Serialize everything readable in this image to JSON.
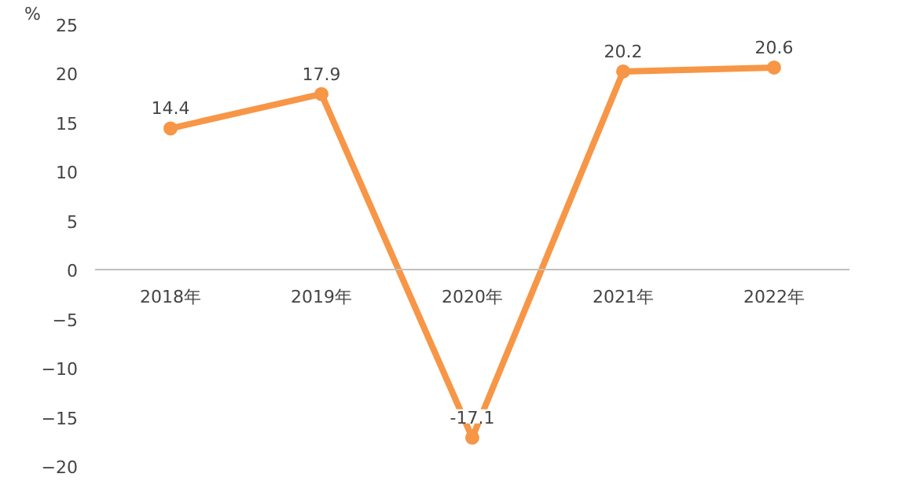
{
  "chart_data": {
    "type": "line",
    "ylabel": "%",
    "categories": [
      "2018年",
      "2019年",
      "2020年",
      "2021年",
      "2022年"
    ],
    "series": [
      {
        "color": "#f79646",
        "values": [
          14.4,
          17.9,
          -17.1,
          20.2,
          20.6
        ]
      }
    ],
    "ylim": [
      -20,
      25
    ],
    "yticks": [
      -20,
      -15,
      -10,
      -5,
      0,
      5,
      10,
      15,
      20,
      25
    ],
    "grid": false,
    "marker": "circle",
    "line_style": "solid",
    "data_labels": true
  }
}
